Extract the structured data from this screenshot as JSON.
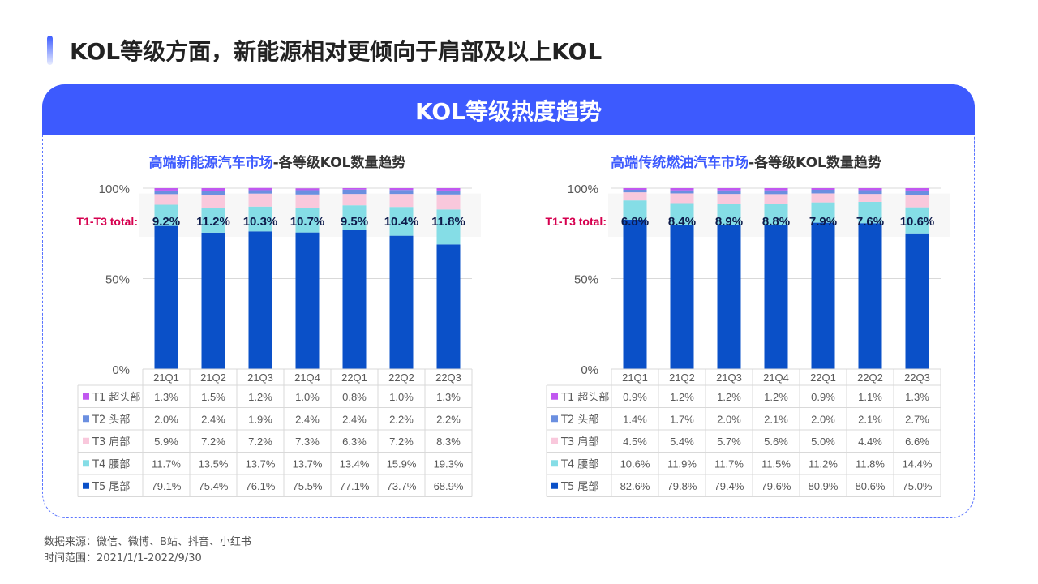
{
  "page_title": "KOL等级方面，新能源相对更倾向于肩部及以上KOL",
  "panel_title": "KOL等级热度趋势",
  "colors": {
    "accent": "#3d5afe",
    "T1": "#c158f0",
    "T2": "#6b8fe0",
    "T3": "#f9c8dc",
    "T4": "#85dde6",
    "T5": "#0a50c8",
    "highlight_label": "#d6004f"
  },
  "source_line1": "数据来源：微信、微博、B站、抖音、小红书",
  "source_line2": "时间范围：2021/1/1-2022/9/30",
  "chart_data": [
    {
      "type": "bar",
      "stacked": true,
      "title_highlight": "高端新能源汽车市场",
      "title_rest": "-各等级KOL数量趋势",
      "categories": [
        "21Q1",
        "21Q2",
        "21Q3",
        "21Q4",
        "22Q1",
        "22Q2",
        "22Q3"
      ],
      "y_ticks": [
        "100%",
        "50%",
        "0%"
      ],
      "ylim": [
        0,
        100
      ],
      "annotation_label": "T1-T3 total:",
      "annotation_values": [
        "9.2%",
        "11.2%",
        "10.3%",
        "10.7%",
        "9.5%",
        "10.4%",
        "11.8%"
      ],
      "series": [
        {
          "key": "T1",
          "name": "T1 超头部",
          "values": [
            1.3,
            1.5,
            1.2,
            1.0,
            0.8,
            1.0,
            1.3
          ],
          "labels": [
            "1.3%",
            "1.5%",
            "1.2%",
            "1.0%",
            "0.8%",
            "1.0%",
            "1.3%"
          ]
        },
        {
          "key": "T2",
          "name": "T2 头部",
          "values": [
            2.0,
            2.4,
            1.9,
            2.4,
            2.4,
            2.2,
            2.2
          ],
          "labels": [
            "2.0%",
            "2.4%",
            "1.9%",
            "2.4%",
            "2.4%",
            "2.2%",
            "2.2%"
          ]
        },
        {
          "key": "T3",
          "name": "T3 肩部",
          "values": [
            5.9,
            7.2,
            7.2,
            7.3,
            6.3,
            7.2,
            8.3
          ],
          "labels": [
            "5.9%",
            "7.2%",
            "7.2%",
            "7.3%",
            "6.3%",
            "7.2%",
            "8.3%"
          ]
        },
        {
          "key": "T4",
          "name": "T4 腰部",
          "values": [
            11.7,
            13.5,
            13.7,
            13.7,
            13.4,
            15.9,
            19.3
          ],
          "labels": [
            "11.7%",
            "13.5%",
            "13.7%",
            "13.7%",
            "13.4%",
            "15.9%",
            "19.3%"
          ]
        },
        {
          "key": "T5",
          "name": "T5 尾部",
          "values": [
            79.1,
            75.4,
            76.1,
            75.5,
            77.1,
            73.7,
            68.9
          ],
          "labels": [
            "79.1%",
            "75.4%",
            "76.1%",
            "75.5%",
            "77.1%",
            "73.7%",
            "68.9%"
          ]
        }
      ]
    },
    {
      "type": "bar",
      "stacked": true,
      "title_highlight": "高端传统燃油汽车市场",
      "title_rest": "-各等级KOL数量趋势",
      "categories": [
        "21Q1",
        "21Q2",
        "21Q3",
        "21Q4",
        "22Q1",
        "22Q2",
        "22Q3"
      ],
      "y_ticks": [
        "100%",
        "50%",
        "0%"
      ],
      "ylim": [
        0,
        100
      ],
      "annotation_label": "T1-T3 total:",
      "annotation_values": [
        "6.8%",
        "8.4%",
        "8.9%",
        "8.8%",
        "7.9%",
        "7.6%",
        "10.6%"
      ],
      "series": [
        {
          "key": "T1",
          "name": "T1 超头部",
          "values": [
            0.9,
            1.2,
            1.2,
            1.2,
            0.9,
            1.1,
            1.3
          ],
          "labels": [
            "0.9%",
            "1.2%",
            "1.2%",
            "1.2%",
            "0.9%",
            "1.1%",
            "1.3%"
          ]
        },
        {
          "key": "T2",
          "name": "T2 头部",
          "values": [
            1.4,
            1.7,
            2.0,
            2.1,
            2.0,
            2.1,
            2.7
          ],
          "labels": [
            "1.4%",
            "1.7%",
            "2.0%",
            "2.1%",
            "2.0%",
            "2.1%",
            "2.7%"
          ]
        },
        {
          "key": "T3",
          "name": "T3 肩部",
          "values": [
            4.5,
            5.4,
            5.7,
            5.6,
            5.0,
            4.4,
            6.6
          ],
          "labels": [
            "4.5%",
            "5.4%",
            "5.7%",
            "5.6%",
            "5.0%",
            "4.4%",
            "6.6%"
          ]
        },
        {
          "key": "T4",
          "name": "T4 腰部",
          "values": [
            10.6,
            11.9,
            11.7,
            11.5,
            11.2,
            11.8,
            14.4
          ],
          "labels": [
            "10.6%",
            "11.9%",
            "11.7%",
            "11.5%",
            "11.2%",
            "11.8%",
            "14.4%"
          ]
        },
        {
          "key": "T5",
          "name": "T5 尾部",
          "values": [
            82.6,
            79.8,
            79.4,
            79.6,
            80.9,
            80.6,
            75.0
          ],
          "labels": [
            "82.6%",
            "79.8%",
            "79.4%",
            "79.6%",
            "80.9%",
            "80.6%",
            "75.0%"
          ]
        }
      ]
    }
  ]
}
